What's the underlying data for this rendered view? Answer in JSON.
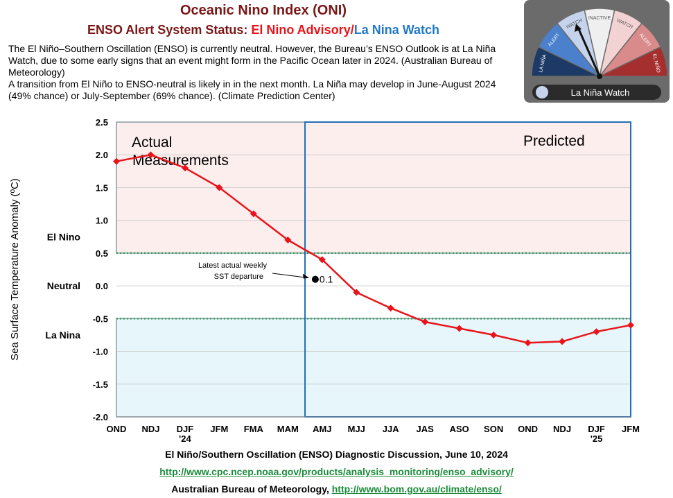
{
  "header": {
    "title": "Oceanic Nino Index (ONI)",
    "subtitle_parts": [
      "ENSO Alert System Status: ",
      "El Nino Advisory/",
      "La Nina Watch"
    ],
    "paragraphs": [
      "The El Niño–Southern Oscillation (ENSO) is currently neutral. However, the Bureau’s ENSO Outlook is at La Niña Watch, due to some early signs that an event might form in the Pacific Ocean later in 2024. (Australian Bureau of Meteorology)",
      "A transition from El Niño to ENSO-neutral is likely in in the next month. La Niña may develop in June-August 2024 (49% chance) or July-September (69% chance). (Climate Prediction Center)"
    ]
  },
  "gauge": {
    "segments": [
      "LA NIÑA",
      "ALERT",
      "WATCH",
      "INACTIVE",
      "WATCH",
      "ALERT",
      "EL NIÑO"
    ],
    "status": "La Niña Watch"
  },
  "chart_data": {
    "type": "line",
    "categories": [
      "OND",
      "NDJ",
      "DJF '24",
      "JFM",
      "FMA",
      "MAM",
      "AMJ",
      "MJJ",
      "JJA",
      "JAS",
      "ASO",
      "SON",
      "OND",
      "NDJ",
      "DJF '25",
      "JFM"
    ],
    "series": [
      {
        "name": "ONI",
        "color": "#e8141a",
        "values": [
          1.9,
          2.0,
          1.8,
          1.5,
          1.1,
          0.7,
          0.4,
          -0.1,
          -0.34,
          -0.55,
          -0.65,
          -0.75,
          -0.87,
          -0.85,
          -0.7,
          -0.6
        ]
      }
    ],
    "ylim": [
      -2.0,
      2.5
    ],
    "yticks": [
      {
        "value": -2,
        "label": "-2.0"
      },
      -1.5,
      {
        "value": -1,
        "label": "-1.0"
      },
      -0.5,
      {
        "value": 0,
        "label": "0.0"
      },
      0.5,
      {
        "value": 1,
        "label": "1.0"
      },
      1.5,
      {
        "value": 2,
        "label": "2.0"
      },
      2.5
    ],
    "y_label": "Sea Surface Temperature Anomaly (ºC)",
    "regions": [
      "El Nino",
      "Neutral",
      "La Nina"
    ],
    "thresholds": [
      0.5,
      -0.5
    ],
    "annotations": {
      "actual": "Actual Measurements",
      "predicted": "Predicted",
      "weekly_note": "Latest actual weekly SST departure",
      "weekly_value": 0.1
    },
    "grid": true
  },
  "footer": {
    "line1": "El Niño/Southern Oscillation (ENSO) Diagnostic Discussion, June 10, 2024",
    "link1": "http://www.cpc.ncep.noaa.gov/products/analysis_monitoring/enso_advisory/",
    "line3_text": "Australian Bureau of Meteorology, ",
    "link3": "http://www.bom.gov.au/climate/enso/"
  }
}
